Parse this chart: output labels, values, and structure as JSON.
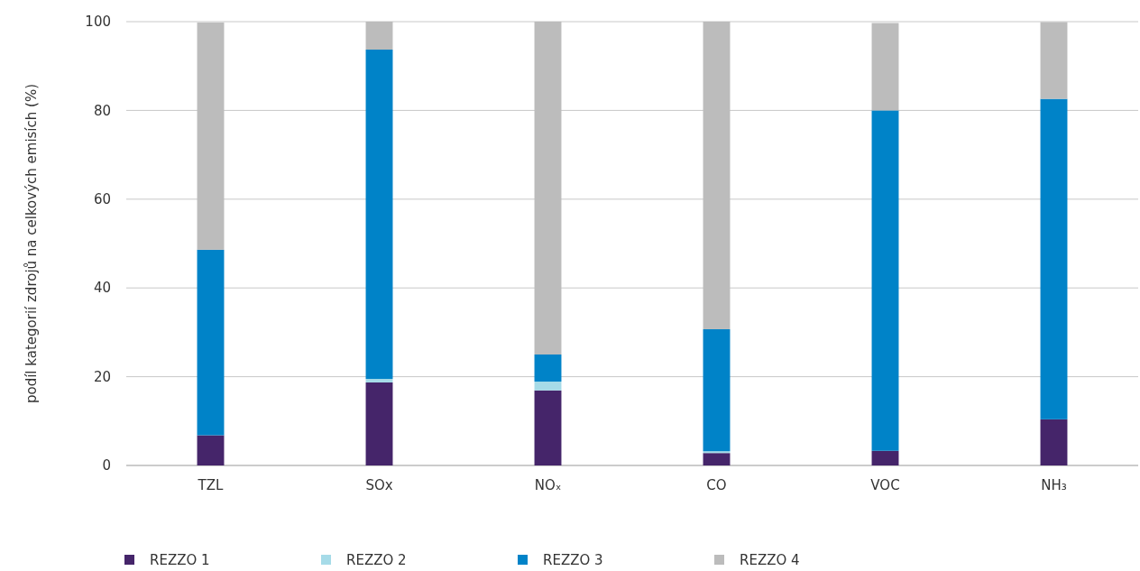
{
  "chart_data": {
    "type": "bar",
    "stacked": true,
    "ylabel": "podíl kategorií zdrojů na celkových emisích (%)",
    "categories": [
      "TZL",
      "SOx",
      "NOₓ",
      "CO",
      "VOC",
      "NH₃"
    ],
    "series": [
      {
        "name": "REZZO 1",
        "color": "#45256a",
        "values": [
          6.8,
          18.7,
          16.9,
          2.8,
          3.3,
          10.4
        ]
      },
      {
        "name": "REZZO 2",
        "color": "#a6dbe8",
        "values": [
          null,
          0.8,
          2.0,
          0.4,
          null,
          null
        ]
      },
      {
        "name": "REZZO 3",
        "color": "#0083c8",
        "values": [
          41.8,
          74.2,
          6.1,
          27.5,
          76.7,
          72.2
        ]
      },
      {
        "name": "REZZO 4",
        "color": "#bcbcbc",
        "values": [
          51.2,
          6.3,
          75.0,
          69.3,
          19.7,
          17.3
        ]
      }
    ],
    "ylim": [
      0,
      100
    ],
    "yticks": [
      0,
      20,
      40,
      60,
      80,
      100
    ],
    "grid": "y",
    "legend": "bottom"
  }
}
